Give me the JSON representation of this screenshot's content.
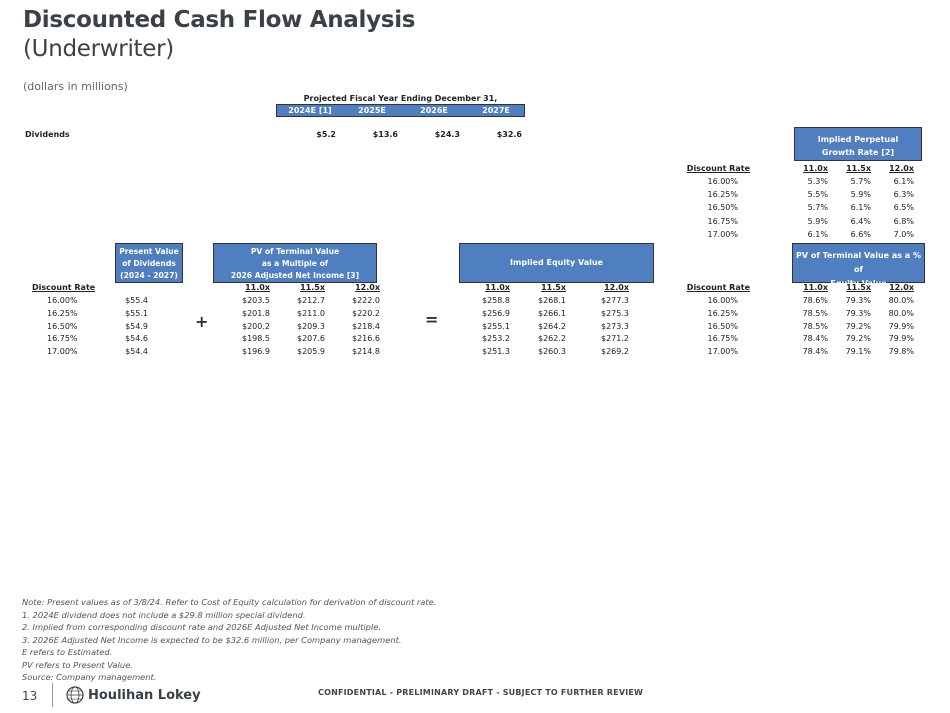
{
  "header": {
    "title": "Discounted Cash Flow Analysis",
    "subtitle": "(Underwriter)",
    "units": "(dollars in millions)"
  },
  "projection": {
    "heading": "Projected Fiscal Year Ending December 31,",
    "years": [
      "2024E [1]",
      "2025E",
      "2026E",
      "2027E"
    ],
    "row_label": "Dividends",
    "values": [
      "$5.2",
      "$13.6",
      "$24.3",
      "$32.6"
    ]
  },
  "growth": {
    "title_line1": "Implied Perpetual",
    "title_line2": "Growth Rate [2]",
    "rate_label": "Discount Rate",
    "multiples": [
      "11.0x",
      "11.5x",
      "12.0x"
    ],
    "rows": [
      {
        "rate": "16.00%",
        "vals": [
          "5.3%",
          "5.7%",
          "6.1%"
        ]
      },
      {
        "rate": "16.25%",
        "vals": [
          "5.5%",
          "5.9%",
          "6.3%"
        ]
      },
      {
        "rate": "16.50%",
        "vals": [
          "5.7%",
          "6.1%",
          "6.5%"
        ]
      },
      {
        "rate": "16.75%",
        "vals": [
          "5.9%",
          "6.4%",
          "6.8%"
        ]
      },
      {
        "rate": "17.00%",
        "vals": [
          "6.1%",
          "6.6%",
          "7.0%"
        ]
      }
    ]
  },
  "pv_dividends": {
    "title_line1": "Present Value",
    "title_line2": "of Dividends",
    "title_line3": "(2024 - 2027)",
    "rate_label": "Discount Rate",
    "rates": [
      "16.00%",
      "16.25%",
      "16.50%",
      "16.75%",
      "17.00%"
    ],
    "values": [
      "$55.4",
      "$55.1",
      "$54.9",
      "$54.6",
      "$54.4"
    ]
  },
  "pv_terminal": {
    "title_line1": "PV of Terminal Value",
    "title_line2": "as a Multiple of",
    "title_line3": "2026 Adjusted Net Income [3]",
    "multiples": [
      "11.0x",
      "11.5x",
      "12.0x"
    ],
    "rows": [
      [
        "$203.5",
        "$212.7",
        "$222.0"
      ],
      [
        "$201.8",
        "$211.0",
        "$220.2"
      ],
      [
        "$200.2",
        "$209.3",
        "$218.4"
      ],
      [
        "$198.5",
        "$207.6",
        "$216.6"
      ],
      [
        "$196.9",
        "$205.9",
        "$214.8"
      ]
    ]
  },
  "equity": {
    "title": "Implied Equity Value",
    "multiples": [
      "11.0x",
      "11.5x",
      "12.0x"
    ],
    "rows": [
      [
        "$258.8",
        "$268.1",
        "$277.3"
      ],
      [
        "$256.9",
        "$266.1",
        "$275.3"
      ],
      [
        "$255.1",
        "$264.2",
        "$273.3"
      ],
      [
        "$253.2",
        "$262.2",
        "$271.2"
      ],
      [
        "$251.3",
        "$260.3",
        "$269.2"
      ]
    ]
  },
  "pct_equity": {
    "title_line1": "PV of Terminal Value as a % of",
    "title_line2": "Equity Value",
    "rate_label": "Discount Rate",
    "multiples": [
      "11.0x",
      "11.5x",
      "12.0x"
    ],
    "rows": [
      {
        "rate": "16.00%",
        "vals": [
          "78.6%",
          "79.3%",
          "80.0%"
        ]
      },
      {
        "rate": "16.25%",
        "vals": [
          "78.5%",
          "79.3%",
          "80.0%"
        ]
      },
      {
        "rate": "16.50%",
        "vals": [
          "78.5%",
          "79.2%",
          "79.9%"
        ]
      },
      {
        "rate": "16.75%",
        "vals": [
          "78.4%",
          "79.2%",
          "79.9%"
        ]
      },
      {
        "rate": "17.00%",
        "vals": [
          "78.4%",
          "79.1%",
          "79.8%"
        ]
      }
    ]
  },
  "symbols": {
    "plus": "+",
    "equals": "="
  },
  "notes": [
    "Note: Present values as of 3/8/24. Refer to Cost of Equity calculation for derivation of discount rate.",
    "1. 2024E dividend does not include a $29.8 million special dividend.",
    "2. Implied from corresponding discount rate and 2026E Adjusted Net Income multiple.",
    "3. 2026E Adjusted Net Income is expected to be $32.6 million, per Company management.",
    "E refers to Estimated.",
    "PV refers to Present Value.",
    "Source: Company management."
  ],
  "footer": {
    "page_number": "13",
    "logo_text": "Houlihan Lokey",
    "confidential": "CONFIDENTIAL - PRELIMINARY DRAFT - SUBJECT TO FURTHER REVIEW"
  }
}
